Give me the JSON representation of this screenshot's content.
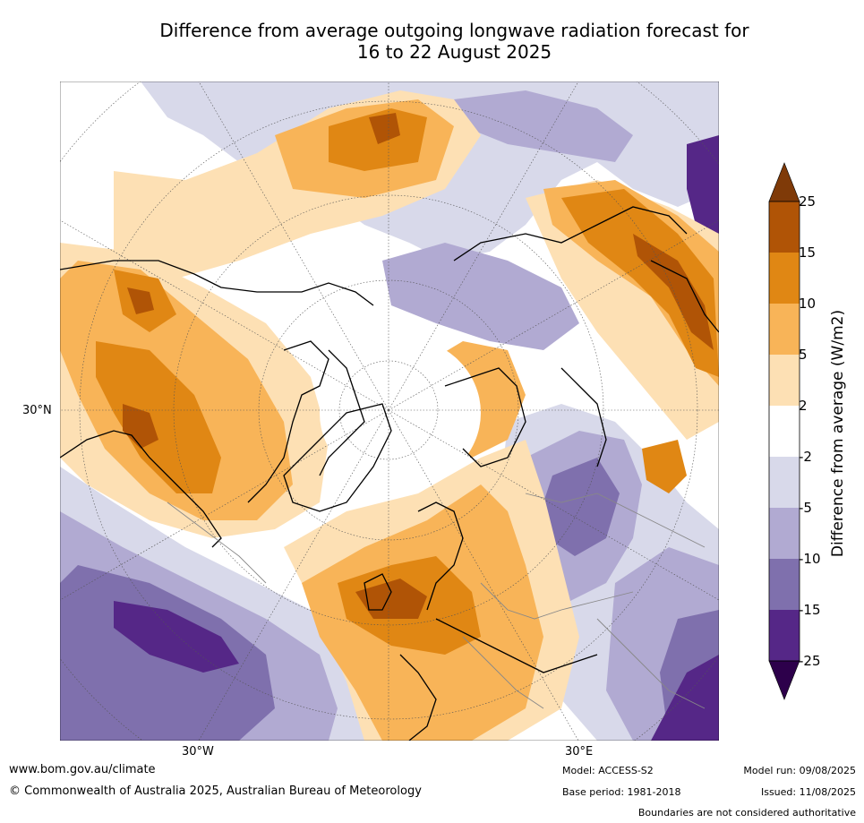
{
  "title_line1": "Difference from average outgoing longwave radiation forecast for",
  "title_line2": "16 to 22 August 2025",
  "map": {
    "projection": "north-polar-stereographic",
    "lat_labels": [
      "30°N"
    ],
    "lon_labels": [
      "30°W",
      "30°E"
    ],
    "colors": {
      "c_25_15_pos": "#b05406",
      "c_15_10_pos": "#e08714",
      "c_10_5_pos": "#f8b458",
      "c_5_2_pos": "#fde0b4",
      "c_2_m2": "#ffffff",
      "c_m2_m5": "#d8d9ea",
      "c_m5_m10": "#b1aad2",
      "c_m10_m15": "#7f70ad",
      "c_m15_m25": "#552787",
      "over": "#7f3a08",
      "under": "#2d004b"
    }
  },
  "colorbar": {
    "label": "Difference from average (W/m2)",
    "ticks": [
      "25",
      "15",
      "10",
      "5",
      "2",
      "-2",
      "-5",
      "-10",
      "-15",
      "-25"
    ]
  },
  "footer": {
    "website": "www.bom.gov.au/climate",
    "copyright": "© Commonwealth of Australia 2025, Australian Bureau of Meteorology",
    "model": "Model: ACCESS-S2",
    "base_period": "Base period: 1981-2018",
    "model_run": "Model run: 09/08/2025",
    "issued": "Issued: 11/08/2025",
    "disclaimer": "Boundaries are not considered authoritative"
  }
}
